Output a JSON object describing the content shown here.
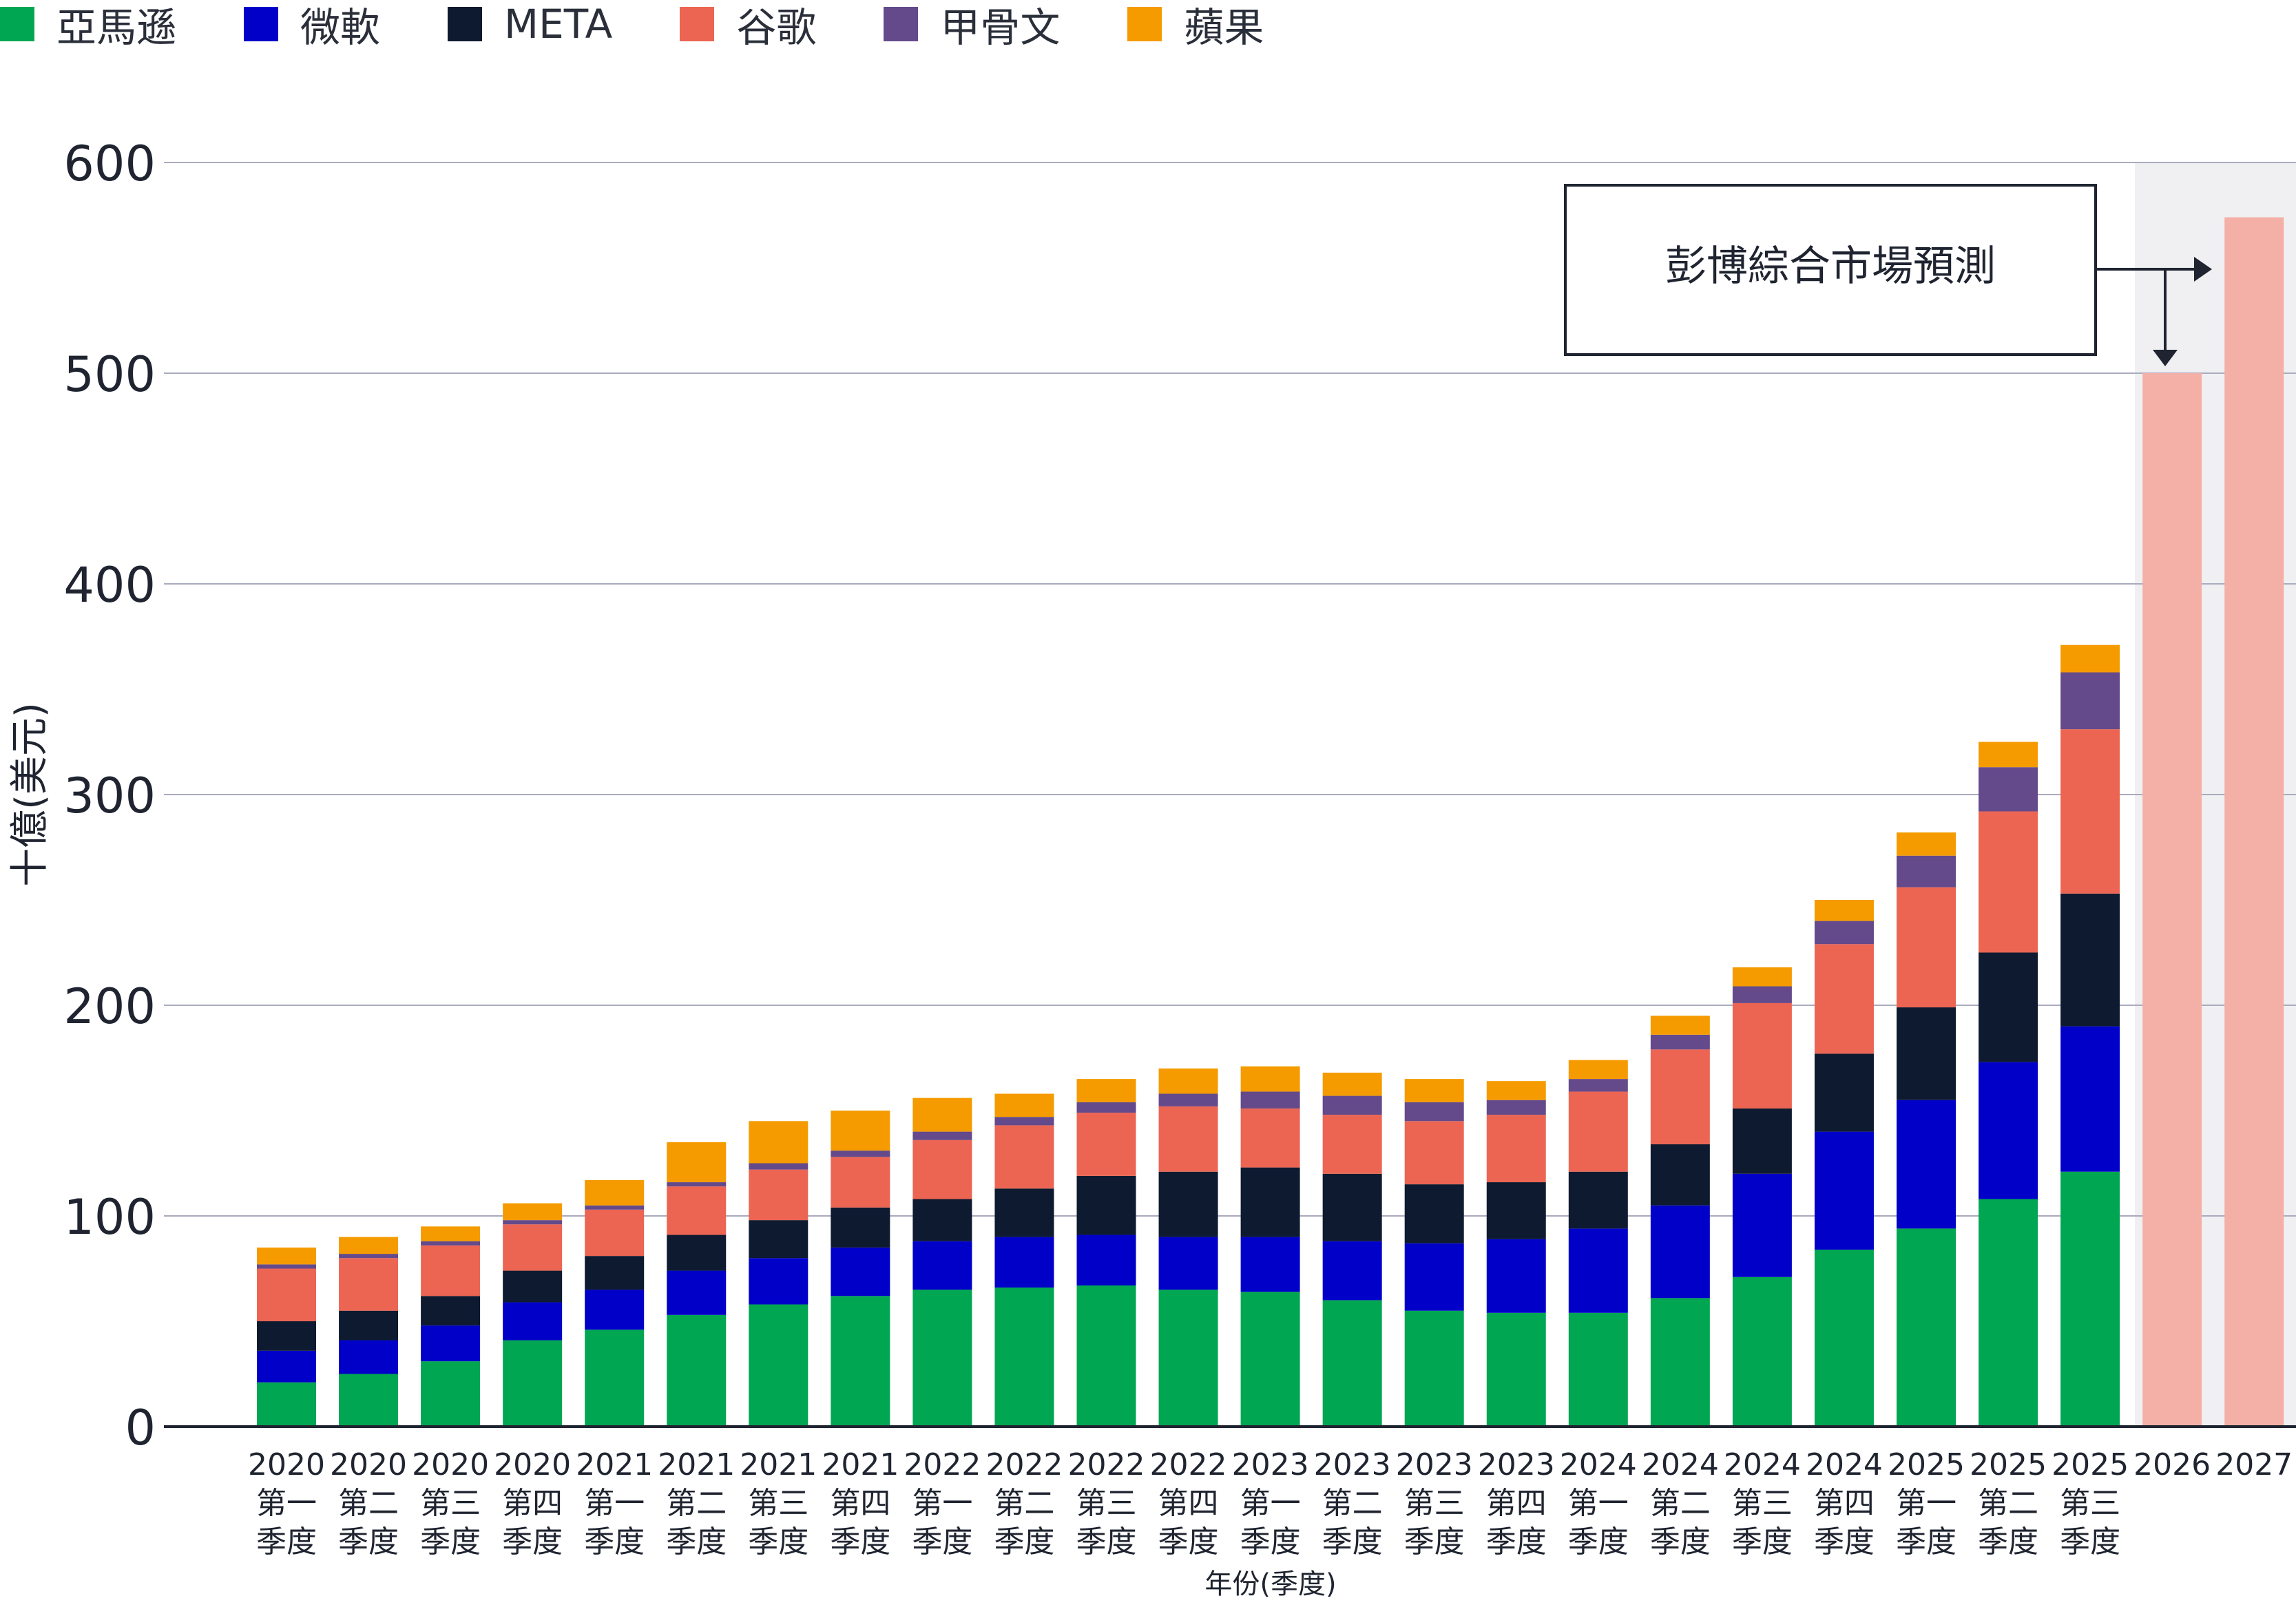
{
  "chart_data": {
    "type": "bar",
    "stacked": true,
    "xlabel": "年份(季度)",
    "ylabel": "十億(美元)",
    "ylim": [
      0,
      600
    ],
    "yticks": [
      0,
      100,
      200,
      300,
      400,
      500,
      600
    ],
    "grid": true,
    "legend_position": "top-left",
    "categories": [
      [
        "2020",
        "第一",
        "季度"
      ],
      [
        "2020",
        "第二",
        "季度"
      ],
      [
        "2020",
        "第三",
        "季度"
      ],
      [
        "2020",
        "第四",
        "季度"
      ],
      [
        "2021",
        "第一",
        "季度"
      ],
      [
        "2021",
        "第二",
        "季度"
      ],
      [
        "2021",
        "第三",
        "季度"
      ],
      [
        "2021",
        "第四",
        "季度"
      ],
      [
        "2022",
        "第一",
        "季度"
      ],
      [
        "2022",
        "第二",
        "季度"
      ],
      [
        "2022",
        "第三",
        "季度"
      ],
      [
        "2022",
        "第四",
        "季度"
      ],
      [
        "2023",
        "第一",
        "季度"
      ],
      [
        "2023",
        "第二",
        "季度"
      ],
      [
        "2023",
        "第三",
        "季度"
      ],
      [
        "2023",
        "第四",
        "季度"
      ],
      [
        "2024",
        "第一",
        "季度"
      ],
      [
        "2024",
        "第二",
        "季度"
      ],
      [
        "2024",
        "第三",
        "季度"
      ],
      [
        "2024",
        "第四",
        "季度"
      ],
      [
        "2025",
        "第一",
        "季度"
      ],
      [
        "2025",
        "第二",
        "季度"
      ],
      [
        "2025",
        "第三",
        "季度"
      ],
      [
        "2026"
      ],
      [
        "2027"
      ]
    ],
    "series": [
      {
        "name": "亞馬遜",
        "color": "#00a651",
        "values": [
          21,
          25,
          31,
          41,
          46,
          53,
          58,
          62,
          65,
          66,
          67,
          65,
          64,
          60,
          55,
          54,
          54,
          61,
          71,
          84,
          94,
          108,
          121,
          null,
          null
        ]
      },
      {
        "name": "微軟",
        "color": "#0000c8",
        "values": [
          15,
          16,
          17,
          18,
          19,
          21,
          22,
          23,
          23,
          24,
          24,
          25,
          26,
          28,
          32,
          35,
          40,
          44,
          49,
          56,
          61,
          65,
          69,
          null,
          null
        ]
      },
      {
        "name": "META",
        "color": "#0e1a30",
        "values": [
          14,
          14,
          14,
          15,
          16,
          17,
          18,
          19,
          20,
          23,
          28,
          31,
          33,
          32,
          28,
          27,
          27,
          29,
          31,
          37,
          44,
          52,
          63,
          null,
          null
        ]
      },
      {
        "name": "谷歌",
        "color": "#ec6553",
        "values": [
          25,
          25,
          24,
          22,
          22,
          23,
          24,
          24,
          28,
          30,
          30,
          31,
          28,
          28,
          30,
          32,
          38,
          45,
          50,
          52,
          57,
          67,
          78,
          null,
          null
        ]
      },
      {
        "name": "甲骨文",
        "color": "#644a8a",
        "values": [
          2,
          2,
          2,
          2,
          2,
          2,
          3,
          3,
          4,
          4,
          5,
          6,
          8,
          9,
          9,
          7,
          6,
          7,
          8,
          11,
          15,
          21,
          27,
          null,
          null
        ]
      },
      {
        "name": "蘋果",
        "color": "#f59b00",
        "values": [
          8,
          8,
          7,
          8,
          12,
          19,
          20,
          19,
          16,
          11,
          11,
          12,
          12,
          11,
          11,
          9,
          9,
          9,
          9,
          10,
          11,
          12,
          13,
          null,
          null
        ]
      }
    ],
    "forecast": {
      "label": "彭博綜合市場預測",
      "categories": [
        "2026",
        "2027"
      ],
      "values": [
        500,
        574
      ],
      "color": "#f4b0a6"
    }
  }
}
